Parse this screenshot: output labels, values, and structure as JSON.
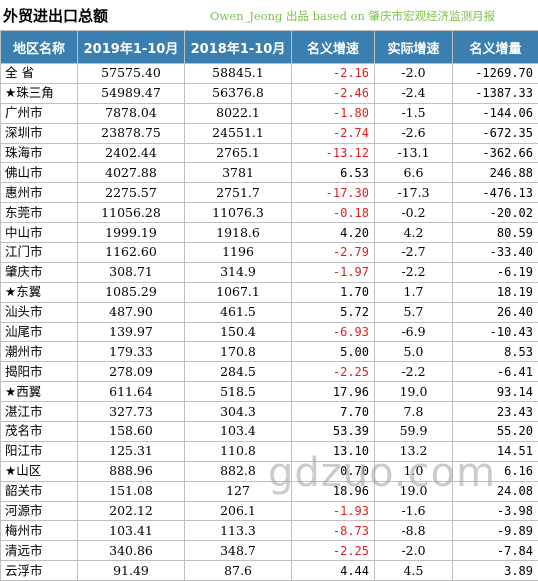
{
  "title": "外贸进出口总额",
  "source": "Owen_Jeong 出品 based on 肇庆市宏观经济监测月报",
  "headers": [
    "地区名称",
    "2019年1-10月",
    "2018年1-10月",
    "名义增速",
    "实际增速",
    "名义增量"
  ],
  "rows": [
    {
      "region": "全 省",
      "y2019": "57575.40",
      "y2018": "58845.1",
      "nominal": "-2.16",
      "real": "-2.0",
      "increment": "-1269.70",
      "nominal_neg": true
    },
    {
      "region": "★珠三角",
      "y2019": "54989.47",
      "y2018": "56376.8",
      "nominal": "-2.46",
      "real": "-2.4",
      "increment": "-1387.33",
      "nominal_neg": true
    },
    {
      "region": "广州市",
      "y2019": "7878.04",
      "y2018": "8022.1",
      "nominal": "-1.80",
      "real": "-1.5",
      "increment": "-144.06",
      "nominal_neg": true
    },
    {
      "region": "深圳市",
      "y2019": "23878.75",
      "y2018": "24551.1",
      "nominal": "-2.74",
      "real": "-2.6",
      "increment": "-672.35",
      "nominal_neg": true
    },
    {
      "region": "珠海市",
      "y2019": "2402.44",
      "y2018": "2765.1",
      "nominal": "-13.12",
      "real": "-13.1",
      "increment": "-362.66",
      "nominal_neg": true
    },
    {
      "region": "佛山市",
      "y2019": "4027.88",
      "y2018": "3781",
      "nominal": "6.53",
      "real": "6.6",
      "increment": "246.88",
      "nominal_neg": false
    },
    {
      "region": "惠州市",
      "y2019": "2275.57",
      "y2018": "2751.7",
      "nominal": "-17.30",
      "real": "-17.3",
      "increment": "-476.13",
      "nominal_neg": true
    },
    {
      "region": "东莞市",
      "y2019": "11056.28",
      "y2018": "11076.3",
      "nominal": "-0.18",
      "real": "-0.2",
      "increment": "-20.02",
      "nominal_neg": true
    },
    {
      "region": "中山市",
      "y2019": "1999.19",
      "y2018": "1918.6",
      "nominal": "4.20",
      "real": "4.2",
      "increment": "80.59",
      "nominal_neg": false
    },
    {
      "region": "江门市",
      "y2019": "1162.60",
      "y2018": "1196",
      "nominal": "-2.79",
      "real": "-2.7",
      "increment": "-33.40",
      "nominal_neg": true
    },
    {
      "region": "肇庆市",
      "y2019": "308.71",
      "y2018": "314.9",
      "nominal": "-1.97",
      "real": "-2.2",
      "increment": "-6.19",
      "nominal_neg": true
    },
    {
      "region": "★东翼",
      "y2019": "1085.29",
      "y2018": "1067.1",
      "nominal": "1.70",
      "real": "1.7",
      "increment": "18.19",
      "nominal_neg": false
    },
    {
      "region": "汕头市",
      "y2019": "487.90",
      "y2018": "461.5",
      "nominal": "5.72",
      "real": "5.7",
      "increment": "26.40",
      "nominal_neg": false
    },
    {
      "region": "汕尾市",
      "y2019": "139.97",
      "y2018": "150.4",
      "nominal": "-6.93",
      "real": "-6.9",
      "increment": "-10.43",
      "nominal_neg": true
    },
    {
      "region": "潮州市",
      "y2019": "179.33",
      "y2018": "170.8",
      "nominal": "5.00",
      "real": "5.0",
      "increment": "8.53",
      "nominal_neg": false
    },
    {
      "region": "揭阳市",
      "y2019": "278.09",
      "y2018": "284.5",
      "nominal": "-2.25",
      "real": "-2.2",
      "increment": "-6.41",
      "nominal_neg": true
    },
    {
      "region": "★西翼",
      "y2019": "611.64",
      "y2018": "518.5",
      "nominal": "17.96",
      "real": "19.0",
      "increment": "93.14",
      "nominal_neg": false
    },
    {
      "region": "湛江市",
      "y2019": "327.73",
      "y2018": "304.3",
      "nominal": "7.70",
      "real": "7.8",
      "increment": "23.43",
      "nominal_neg": false
    },
    {
      "region": "茂名市",
      "y2019": "158.60",
      "y2018": "103.4",
      "nominal": "53.39",
      "real": "59.9",
      "increment": "55.20",
      "nominal_neg": false
    },
    {
      "region": "阳江市",
      "y2019": "125.31",
      "y2018": "110.8",
      "nominal": "13.10",
      "real": "13.2",
      "increment": "14.51",
      "nominal_neg": false
    },
    {
      "region": "★山区",
      "y2019": "888.96",
      "y2018": "882.8",
      "nominal": "0.70",
      "real": "1.0",
      "increment": "6.16",
      "nominal_neg": false
    },
    {
      "region": "韶关市",
      "y2019": "151.08",
      "y2018": "127",
      "nominal": "18.96",
      "real": "19.0",
      "increment": "24.08",
      "nominal_neg": false
    },
    {
      "region": "河源市",
      "y2019": "202.12",
      "y2018": "206.1",
      "nominal": "-1.93",
      "real": "-1.6",
      "increment": "-3.98",
      "nominal_neg": true
    },
    {
      "region": "梅州市",
      "y2019": "103.41",
      "y2018": "113.3",
      "nominal": "-8.73",
      "real": "-8.8",
      "increment": "-9.89",
      "nominal_neg": true
    },
    {
      "region": "清远市",
      "y2019": "340.86",
      "y2018": "348.7",
      "nominal": "-2.25",
      "real": "-2.0",
      "increment": "-7.84",
      "nominal_neg": true
    },
    {
      "region": "云浮市",
      "y2019": "91.49",
      "y2018": "87.6",
      "nominal": "4.44",
      "real": "4.5",
      "increment": "3.89",
      "nominal_neg": false
    }
  ],
  "watermark": "gdzuo.com",
  "colors": {
    "header_bg": "#3b7fb0",
    "negative": "#e02020",
    "source_text": "#7cc04a"
  }
}
